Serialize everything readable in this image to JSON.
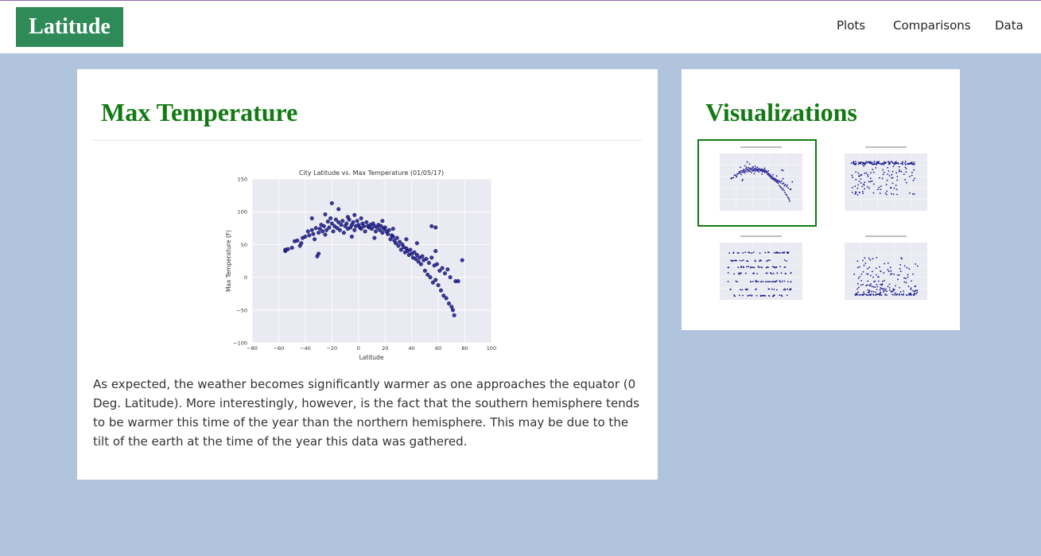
{
  "navbar": {
    "brand": "Latitude",
    "links": [
      "Plots",
      "Comparisons",
      "Data"
    ]
  },
  "main": {
    "heading": "Max Temperature",
    "description": "As expected, the weather becomes significantly warmer as one approaches the equator (0 Deg. Latitude). More interestingly, however, is the fact that the southern hemisphere tends to be warmer this time of the year than the northern hemisphere. This may be due to the tilt of the earth at the time of the year this data was gathered."
  },
  "sidebar": {
    "heading": "Visualizations",
    "thumbnails": [
      {
        "name": "max-temperature",
        "selected": true
      },
      {
        "name": "humidity",
        "selected": false
      },
      {
        "name": "cloudiness",
        "selected": false
      },
      {
        "name": "wind-speed",
        "selected": false
      }
    ]
  },
  "colors": {
    "page_bg": "#b0c4de",
    "brand_bg": "#2e8b57",
    "heading": "#137a13",
    "marker": "#1a1a8c",
    "plot_bg": "#eaeaf2"
  },
  "chart_data": {
    "type": "scatter",
    "title": "City Latitude vs. Max Temperature (01/05/17)",
    "xlabel": "Latitude",
    "ylabel": "Max Temperature (F)",
    "xlim": [
      -80,
      100
    ],
    "ylim": [
      -100,
      150
    ],
    "xticks": [
      "−80",
      "−60",
      "−40",
      "−20",
      "0",
      "20",
      "40",
      "60",
      "80",
      "100"
    ],
    "yticks": [
      "−100",
      "−50",
      "0",
      "50",
      "100",
      "150"
    ],
    "grid": true,
    "points": [
      [
        -55,
        40
      ],
      [
        -53,
        43
      ],
      [
        -50,
        45
      ],
      [
        -48,
        55
      ],
      [
        -46,
        56
      ],
      [
        -44,
        48
      ],
      [
        -42,
        60
      ],
      [
        -40,
        62
      ],
      [
        -38,
        70
      ],
      [
        -37,
        64
      ],
      [
        -35,
        72
      ],
      [
        -34,
        66
      ],
      [
        -33,
        58
      ],
      [
        -32,
        75
      ],
      [
        -31,
        32
      ],
      [
        -30,
        68
      ],
      [
        -29,
        74
      ],
      [
        -28,
        80
      ],
      [
        -27,
        70
      ],
      [
        -26,
        78
      ],
      [
        -25,
        65
      ],
      [
        -24,
        72
      ],
      [
        -23,
        85
      ],
      [
        -22,
        76
      ],
      [
        -21,
        90
      ],
      [
        -20,
        82
      ],
      [
        -19,
        70
      ],
      [
        -18,
        78
      ],
      [
        -17,
        88
      ],
      [
        -16,
        75
      ],
      [
        -15,
        84
      ],
      [
        -14,
        72
      ],
      [
        -13,
        80
      ],
      [
        -12,
        86
      ],
      [
        -11,
        68
      ],
      [
        -10,
        78
      ],
      [
        -9,
        82
      ],
      [
        -8,
        74
      ],
      [
        -7,
        88
      ],
      [
        -6,
        76
      ],
      [
        -5,
        80
      ],
      [
        -4,
        84
      ],
      [
        -3,
        72
      ],
      [
        -2,
        78
      ],
      [
        -1,
        86
      ],
      [
        0,
        80
      ],
      [
        1,
        76
      ],
      [
        2,
        74
      ],
      [
        3,
        82
      ],
      [
        4,
        78
      ],
      [
        5,
        70
      ],
      [
        6,
        84
      ],
      [
        7,
        78
      ],
      [
        8,
        76
      ],
      [
        9,
        80
      ],
      [
        10,
        74
      ],
      [
        11,
        82
      ],
      [
        12,
        78
      ],
      [
        13,
        70
      ],
      [
        14,
        76
      ],
      [
        15,
        80
      ],
      [
        16,
        72
      ],
      [
        17,
        78
      ],
      [
        18,
        68
      ],
      [
        19,
        74
      ],
      [
        20,
        76
      ],
      [
        21,
        70
      ],
      [
        22,
        66
      ],
      [
        23,
        72
      ],
      [
        24,
        58
      ],
      [
        25,
        64
      ],
      [
        26,
        62
      ],
      [
        27,
        56
      ],
      [
        28,
        52
      ],
      [
        29,
        60
      ],
      [
        30,
        48
      ],
      [
        31,
        54
      ],
      [
        32,
        42
      ],
      [
        33,
        50
      ],
      [
        34,
        46
      ],
      [
        35,
        38
      ],
      [
        36,
        44
      ],
      [
        37,
        40
      ],
      [
        38,
        34
      ],
      [
        39,
        42
      ],
      [
        40,
        36
      ],
      [
        41,
        30
      ],
      [
        42,
        38
      ],
      [
        43,
        28
      ],
      [
        44,
        34
      ],
      [
        45,
        24
      ],
      [
        46,
        30
      ],
      [
        47,
        20
      ],
      [
        48,
        32
      ],
      [
        49,
        26
      ],
      [
        50,
        10
      ],
      [
        51,
        28
      ],
      [
        52,
        4
      ],
      [
        53,
        22
      ],
      [
        54,
        0
      ],
      [
        55,
        30
      ],
      [
        56,
        -8
      ],
      [
        57,
        18
      ],
      [
        58,
        -4
      ],
      [
        59,
        20
      ],
      [
        60,
        -12
      ],
      [
        61,
        10
      ],
      [
        62,
        -20
      ],
      [
        63,
        14
      ],
      [
        64,
        -28
      ],
      [
        65,
        6
      ],
      [
        66,
        -32
      ],
      [
        67,
        12
      ],
      [
        68,
        -40
      ],
      [
        69,
        0
      ],
      [
        70,
        -45
      ],
      [
        71,
        -50
      ],
      [
        72,
        -58
      ],
      [
        73,
        -6
      ],
      [
        75,
        -6
      ],
      [
        78,
        26
      ],
      [
        58,
        76
      ],
      [
        55,
        78
      ],
      [
        -55,
        42
      ],
      [
        -43,
        52
      ],
      [
        -30,
        36
      ],
      [
        -5,
        62
      ],
      [
        12,
        60
      ],
      [
        26,
        74
      ],
      [
        36,
        58
      ],
      [
        -15,
        104
      ],
      [
        -20,
        113
      ],
      [
        -25,
        96
      ],
      [
        -35,
        90
      ],
      [
        -8,
        92
      ],
      [
        -3,
        95
      ],
      [
        2,
        90
      ],
      [
        18,
        86
      ],
      [
        44,
        52
      ],
      [
        58,
        40
      ]
    ]
  }
}
